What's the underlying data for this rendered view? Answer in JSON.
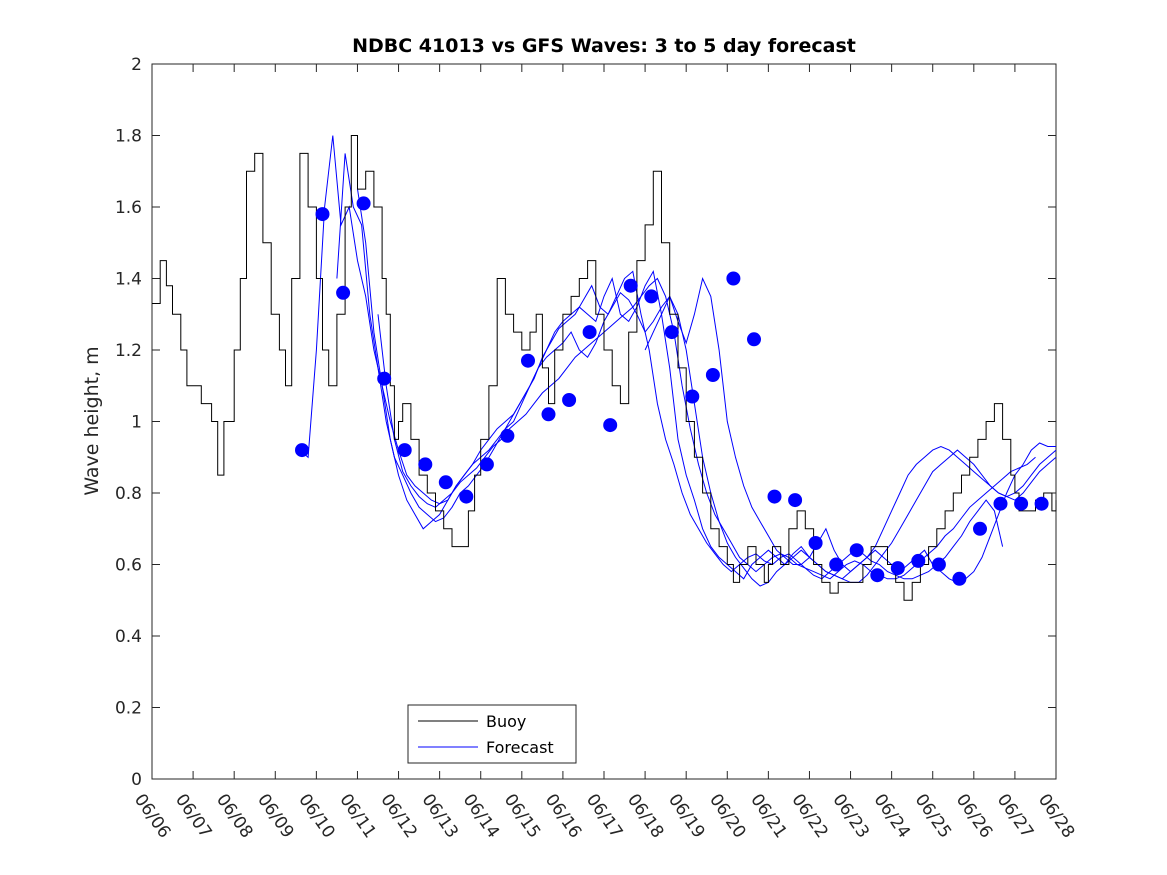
{
  "chart_data": {
    "type": "line",
    "title": "NDBC 41013 vs GFS Waves: 3 to 5 day forecast",
    "xlabel": "",
    "ylabel": "Wave height, m",
    "x_ticks": [
      "06/06",
      "06/07",
      "06/08",
      "06/09",
      "06/10",
      "06/11",
      "06/12",
      "06/13",
      "06/14",
      "06/15",
      "06/16",
      "06/17",
      "06/18",
      "06/19",
      "06/20",
      "06/21",
      "06/22",
      "06/23",
      "06/24",
      "06/25",
      "06/26",
      "06/27",
      "06/28"
    ],
    "xlim_days": [
      0,
      22
    ],
    "ylim": [
      0,
      2
    ],
    "y_ticks": [
      0,
      0.2,
      0.4,
      0.6,
      0.8,
      1,
      1.2,
      1.4,
      1.6,
      1.8,
      2
    ],
    "y_tick_labels": [
      "0",
      "0.2",
      "0.4",
      "0.6",
      "0.8",
      "1",
      "1.2",
      "1.4",
      "1.6",
      "1.8",
      "2"
    ],
    "grid": false,
    "legend_position": "bottom-left",
    "colors": {
      "buoy": "#000000",
      "forecast": "#0000ff"
    },
    "series": [
      {
        "name": "Buoy",
        "style": "line",
        "x_days": [
          0,
          0.2,
          0.35,
          0.5,
          0.7,
          0.85,
          1.0,
          1.2,
          1.45,
          1.6,
          1.75,
          2.0,
          2.15,
          2.3,
          2.5,
          2.7,
          2.9,
          3.1,
          3.25,
          3.4,
          3.6,
          3.8,
          4.0,
          4.15,
          4.3,
          4.5,
          4.7,
          4.85,
          5.0,
          5.2,
          5.4,
          5.6,
          5.7,
          5.8,
          5.9,
          6.0,
          6.1,
          6.3,
          6.5,
          6.7,
          6.9,
          7.1,
          7.3,
          7.5,
          7.7,
          7.85,
          8.0,
          8.2,
          8.4,
          8.6,
          8.8,
          9.0,
          9.2,
          9.35,
          9.5,
          9.65,
          9.8,
          10.0,
          10.2,
          10.4,
          10.6,
          10.8,
          11.0,
          11.2,
          11.4,
          11.6,
          11.8,
          12.0,
          12.2,
          12.4,
          12.6,
          12.8,
          13.0,
          13.2,
          13.4,
          13.6,
          13.8,
          14.0,
          14.15,
          14.3,
          14.5,
          14.7,
          14.9,
          15.0,
          15.1,
          15.3,
          15.5,
          15.7,
          15.9,
          16.1,
          16.3,
          16.5,
          16.7,
          16.9,
          17.1,
          17.3,
          17.5,
          17.7,
          17.9,
          18.1,
          18.3,
          18.5,
          18.7,
          18.9,
          19.1,
          19.3,
          19.5,
          19.7,
          19.9,
          20.1,
          20.3,
          20.5,
          20.7,
          20.9,
          21.0,
          21.1,
          21.3,
          21.5,
          21.7,
          21.9,
          22.0
        ],
        "values": [
          1.33,
          1.45,
          1.38,
          1.3,
          1.2,
          1.1,
          1.1,
          1.05,
          1.0,
          0.85,
          1.0,
          1.2,
          1.4,
          1.7,
          1.75,
          1.5,
          1.3,
          1.2,
          1.1,
          1.4,
          1.75,
          1.6,
          1.4,
          1.2,
          1.1,
          1.3,
          1.6,
          1.8,
          1.65,
          1.7,
          1.6,
          1.4,
          1.3,
          1.1,
          0.95,
          1.0,
          1.05,
          0.95,
          0.85,
          0.8,
          0.75,
          0.7,
          0.65,
          0.65,
          0.75,
          0.85,
          0.95,
          1.1,
          1.4,
          1.3,
          1.25,
          1.2,
          1.25,
          1.3,
          1.15,
          1.05,
          1.2,
          1.3,
          1.35,
          1.4,
          1.45,
          1.3,
          1.2,
          1.1,
          1.05,
          1.25,
          1.45,
          1.55,
          1.7,
          1.5,
          1.3,
          1.15,
          1.0,
          0.9,
          0.8,
          0.7,
          0.65,
          0.6,
          0.55,
          0.6,
          0.65,
          0.6,
          0.55,
          0.6,
          0.65,
          0.6,
          0.7,
          0.75,
          0.7,
          0.6,
          0.55,
          0.52,
          0.55,
          0.55,
          0.55,
          0.6,
          0.65,
          0.65,
          0.6,
          0.55,
          0.5,
          0.55,
          0.6,
          0.65,
          0.7,
          0.75,
          0.8,
          0.85,
          0.9,
          0.95,
          1.0,
          1.05,
          0.95,
          0.85,
          0.8,
          0.75,
          0.75,
          0.78,
          0.8,
          0.75,
          0.78
        ]
      },
      {
        "name": "Forecast",
        "style": "markers",
        "x_days": [
          3.65,
          4.15,
          4.65,
          5.15,
          5.65,
          6.15,
          6.65,
          7.15,
          7.65,
          8.15,
          8.65,
          9.15,
          9.65,
          10.15,
          10.65,
          11.15,
          11.65,
          12.15,
          12.65,
          13.15,
          13.65,
          14.15,
          14.65,
          15.15,
          15.65,
          16.15,
          16.65,
          17.15,
          17.65,
          18.15,
          18.65,
          19.15,
          19.65,
          20.15,
          20.65,
          21.15,
          21.65
        ],
        "values": [
          0.92,
          1.58,
          1.36,
          1.61,
          1.12,
          0.92,
          0.88,
          0.83,
          0.79,
          0.88,
          0.96,
          1.17,
          1.02,
          1.06,
          1.25,
          0.99,
          1.38,
          1.35,
          1.25,
          1.07,
          1.13,
          1.4,
          1.23,
          0.79,
          0.78,
          0.66,
          0.6,
          0.64,
          0.57,
          0.59,
          0.61,
          0.6,
          0.56,
          0.7,
          0.77,
          0.77,
          0.77
        ]
      }
    ],
    "forecast_runs": [
      {
        "x_days": [
          3.6,
          3.8,
          4.0,
          4.2,
          4.4,
          4.6,
          4.8,
          5.0,
          5.2,
          5.4,
          5.6,
          5.8,
          6.0,
          6.2,
          6.4,
          6.6,
          6.8,
          7.0,
          7.2,
          7.4,
          7.6,
          7.8,
          8.0,
          8.2,
          8.4,
          8.6,
          8.8,
          9.0,
          9.2,
          9.4,
          9.6,
          9.8,
          10.0,
          10.2,
          10.4,
          10.6,
          10.8,
          11.0,
          11.2,
          11.4,
          11.6,
          11.8,
          12.0,
          12.2,
          12.4,
          12.6,
          12.8,
          13.0,
          13.2,
          13.4,
          13.6,
          13.8,
          14.0,
          14.2,
          14.4,
          14.6,
          14.8,
          15.0,
          15.2,
          15.4,
          15.6,
          15.8,
          16.0,
          16.2,
          16.4,
          16.6,
          16.8,
          17.0,
          17.2,
          17.4,
          17.6,
          17.8,
          18.0,
          18.2,
          18.4,
          18.6,
          18.8,
          19.0,
          19.2,
          19.4,
          19.6,
          19.8,
          20.0,
          20.2,
          20.4,
          20.6,
          20.8,
          21.0,
          21.2,
          21.4,
          21.6,
          21.8,
          22.0
        ],
        "values": [
          0.92,
          0.9,
          1.2,
          1.6,
          1.8,
          1.55,
          1.6,
          1.45,
          1.35,
          1.2,
          1.1,
          1.0,
          0.92,
          0.85,
          0.82,
          0.8,
          0.78,
          0.77,
          0.78,
          0.82,
          0.85,
          0.88,
          0.9,
          0.92,
          0.95,
          0.98,
          1.0,
          1.05,
          1.1,
          1.15,
          1.2,
          1.25,
          1.28,
          1.3,
          1.32,
          1.3,
          1.28,
          1.35,
          1.4,
          1.3,
          1.28,
          1.32,
          1.38,
          1.42,
          1.3,
          1.15,
          0.95,
          0.85,
          0.78,
          0.7,
          0.65,
          0.62,
          0.6,
          0.58,
          0.56,
          0.6,
          0.62,
          0.64,
          0.62,
          0.6,
          0.63,
          0.65,
          0.62,
          0.6,
          0.58,
          0.57,
          0.56,
          0.58,
          0.6,
          0.62,
          0.65,
          0.7,
          0.75,
          0.8,
          0.85,
          0.88,
          0.9,
          0.92,
          0.93,
          0.92,
          0.9,
          0.88,
          0.86,
          0.84,
          0.82,
          0.8,
          0.79,
          0.8,
          0.82,
          0.85,
          0.88,
          0.9,
          0.92
        ]
      },
      {
        "x_days": [
          4.5,
          4.7,
          4.9,
          5.1,
          5.3,
          5.5,
          5.7,
          5.9,
          6.1,
          6.3,
          6.5,
          6.7,
          6.9,
          7.1,
          7.3,
          7.5,
          7.7,
          7.9,
          8.1,
          8.3,
          8.5,
          8.7,
          8.9,
          9.1,
          9.3,
          9.5,
          9.7,
          9.9,
          10.1,
          10.3,
          10.5,
          10.7,
          10.9,
          11.1,
          11.3,
          11.5,
          11.7,
          11.9,
          12.1,
          12.3,
          12.5,
          12.7,
          12.9,
          13.1,
          13.3,
          13.5,
          13.7,
          13.9,
          14.1,
          14.3,
          14.5,
          14.7,
          14.9,
          15.1,
          15.3,
          15.5,
          15.7,
          15.9,
          16.1,
          16.3,
          16.5,
          16.7,
          16.9,
          17.1,
          17.3,
          17.5,
          17.7,
          17.9,
          18.1,
          18.3,
          18.5,
          18.7,
          18.9,
          19.1,
          19.3,
          19.5,
          19.7,
          19.9,
          20.1,
          20.3,
          20.5,
          20.7
        ],
        "values": [
          1.4,
          1.75,
          1.6,
          1.55,
          1.3,
          1.15,
          1.0,
          0.9,
          0.85,
          0.8,
          0.76,
          0.74,
          0.72,
          0.73,
          0.76,
          0.8,
          0.82,
          0.85,
          0.88,
          0.92,
          0.96,
          1.0,
          1.04,
          1.08,
          1.12,
          1.18,
          1.22,
          1.26,
          1.28,
          1.3,
          1.34,
          1.38,
          1.32,
          1.3,
          1.35,
          1.4,
          1.42,
          1.3,
          1.2,
          1.05,
          0.95,
          0.88,
          0.8,
          0.74,
          0.7,
          0.66,
          0.63,
          0.6,
          0.58,
          0.6,
          0.62,
          0.63,
          0.61,
          0.6,
          0.62,
          0.63,
          0.61,
          0.59,
          0.57,
          0.56,
          0.58,
          0.6,
          0.62,
          0.64,
          0.63,
          0.61,
          0.6,
          0.58,
          0.57,
          0.56,
          0.56,
          0.57,
          0.58,
          0.6,
          0.62,
          0.65,
          0.68,
          0.72,
          0.75,
          0.78,
          0.75,
          0.65
        ]
      },
      {
        "x_days": [
          5.0,
          5.2,
          5.4,
          5.6,
          5.8,
          6.0,
          6.2,
          6.4,
          6.6,
          6.8,
          7.0,
          7.2,
          7.4,
          7.6,
          7.8,
          8.0,
          8.2,
          8.4,
          8.6,
          8.8,
          9.0,
          9.2,
          9.4,
          9.6,
          9.8,
          10.0,
          10.2,
          10.4,
          10.6,
          10.8,
          11.0,
          11.2,
          11.4,
          11.6,
          11.8,
          12.0,
          12.2,
          12.4,
          12.6,
          12.8,
          13.0,
          13.2,
          13.4,
          13.6,
          13.8,
          14.0,
          14.2,
          14.4,
          14.6,
          14.8,
          15.0,
          15.2,
          15.4,
          15.6,
          15.8,
          16.0,
          16.2,
          16.4,
          16.6,
          16.8,
          17.0,
          17.2,
          17.4,
          17.6,
          17.8,
          18.0,
          18.2,
          18.4,
          18.6,
          18.8,
          19.0,
          19.2,
          19.4,
          19.6,
          19.8,
          20.0,
          20.2,
          20.4,
          20.6,
          20.8,
          21.0,
          21.2,
          21.4,
          21.6,
          21.8,
          22.0
        ],
        "values": [
          1.65,
          1.5,
          1.25,
          1.1,
          0.95,
          0.85,
          0.78,
          0.74,
          0.7,
          0.72,
          0.74,
          0.78,
          0.82,
          0.85,
          0.88,
          0.92,
          0.95,
          0.98,
          1.0,
          1.02,
          1.06,
          1.1,
          1.15,
          1.18,
          1.2,
          1.22,
          1.25,
          1.2,
          1.18,
          1.22,
          1.28,
          1.32,
          1.36,
          1.34,
          1.3,
          1.25,
          1.28,
          1.32,
          1.35,
          1.3,
          1.2,
          1.05,
          0.9,
          0.8,
          0.72,
          0.66,
          0.62,
          0.59,
          0.56,
          0.54,
          0.55,
          0.58,
          0.6,
          0.62,
          0.64,
          0.62,
          0.6,
          0.58,
          0.57,
          0.56,
          0.55,
          0.55,
          0.57,
          0.6,
          0.63,
          0.66,
          0.7,
          0.74,
          0.78,
          0.82,
          0.86,
          0.88,
          0.9,
          0.92,
          0.9,
          0.88,
          0.85,
          0.82,
          0.8,
          0.79,
          0.78,
          0.8,
          0.83,
          0.86,
          0.88,
          0.9
        ]
      },
      {
        "x_days": [
          5.5,
          5.7,
          5.9,
          6.1,
          6.3,
          6.5,
          6.7,
          6.9,
          7.1,
          7.3,
          7.5,
          7.7,
          7.9,
          8.1,
          8.3,
          8.5,
          8.7,
          8.9,
          9.1,
          9.3,
          9.5,
          9.7,
          9.9,
          10.1,
          10.3,
          10.5,
          10.7,
          10.9,
          11.1,
          11.3,
          11.5,
          11.7,
          11.9,
          12.1,
          12.3,
          12.5,
          12.7,
          12.9,
          13.1,
          13.3,
          13.5,
          13.7,
          13.9,
          14.1,
          14.3,
          14.5,
          14.7,
          14.9,
          15.1,
          15.3,
          15.5,
          15.7,
          15.9,
          16.1,
          16.3,
          16.5,
          16.7,
          16.9,
          17.1,
          17.3,
          17.5,
          17.7,
          17.9,
          18.1,
          18.3,
          18.5,
          18.7,
          18.9,
          19.1,
          19.3,
          19.5,
          19.7,
          19.9,
          20.1,
          20.3,
          20.5,
          20.7,
          20.9,
          21.1,
          21.3,
          21.5
        ],
        "values": [
          1.3,
          1.1,
          0.95,
          0.86,
          0.82,
          0.79,
          0.77,
          0.76,
          0.78,
          0.8,
          0.83,
          0.85,
          0.87,
          0.9,
          0.93,
          0.95,
          0.98,
          1.0,
          1.02,
          1.05,
          1.08,
          1.1,
          1.12,
          1.15,
          1.18,
          1.2,
          1.22,
          1.24,
          1.26,
          1.28,
          1.3,
          1.32,
          1.35,
          1.38,
          1.4,
          1.35,
          1.25,
          1.1,
          0.98,
          0.88,
          0.8,
          0.74,
          0.7,
          0.66,
          0.62,
          0.6,
          0.58,
          0.6,
          0.62,
          0.63,
          0.62,
          0.6,
          0.59,
          0.58,
          0.57,
          0.56,
          0.58,
          0.6,
          0.61,
          0.6,
          0.58,
          0.57,
          0.56,
          0.56,
          0.57,
          0.59,
          0.61,
          0.63,
          0.65,
          0.68,
          0.7,
          0.73,
          0.76,
          0.78,
          0.8,
          0.82,
          0.84,
          0.86,
          0.87,
          0.88,
          0.9
        ]
      },
      {
        "x_days": [
          12.0,
          12.2,
          12.4,
          12.6,
          12.8,
          13.0,
          13.2,
          13.4,
          13.6,
          13.8,
          14.0,
          14.2,
          14.4,
          14.6,
          14.8,
          15.0,
          15.2,
          15.4,
          15.6,
          15.8,
          16.0,
          16.2,
          16.4,
          16.6,
          16.8,
          17.0,
          17.2,
          17.4,
          17.6,
          17.8,
          18.0,
          18.2,
          18.4,
          18.6,
          18.8,
          19.0,
          19.2,
          19.4,
          19.6,
          19.8,
          20.0,
          20.2,
          20.4,
          20.6,
          20.8,
          21.0,
          21.2,
          21.4,
          21.6,
          21.8,
          22.0
        ],
        "values": [
          1.2,
          1.25,
          1.3,
          1.35,
          1.28,
          1.22,
          1.3,
          1.4,
          1.35,
          1.2,
          1.0,
          0.9,
          0.82,
          0.76,
          0.72,
          0.68,
          0.64,
          0.62,
          0.6,
          0.6,
          0.62,
          0.66,
          0.7,
          0.64,
          0.6,
          0.58,
          0.6,
          0.62,
          0.64,
          0.62,
          0.6,
          0.58,
          0.6,
          0.62,
          0.64,
          0.6,
          0.58,
          0.56,
          0.55,
          0.56,
          0.58,
          0.62,
          0.68,
          0.74,
          0.8,
          0.85,
          0.88,
          0.92,
          0.94,
          0.93,
          0.93
        ]
      }
    ],
    "legend": [
      "Buoy",
      "Forecast"
    ]
  }
}
